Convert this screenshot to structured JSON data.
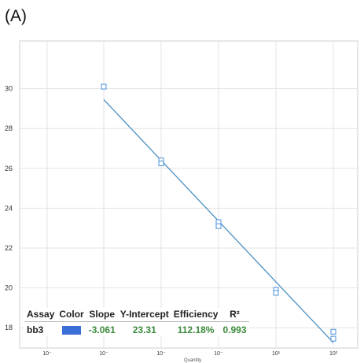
{
  "panel_label": "(A)",
  "chart_data": {
    "type": "scatter",
    "title": "",
    "ylabel": "",
    "xlabel": "Quantity",
    "x_scale": "log",
    "x_tick_labels": [
      "10⁻",
      "10⁻",
      "10⁻",
      "10⁻",
      "10¹",
      "10²"
    ],
    "x_tick_values": [
      0.0001,
      0.001,
      0.01,
      0.1,
      10,
      100
    ],
    "y_ticks": [
      18,
      20,
      22,
      24,
      26,
      28,
      30
    ],
    "ylim": [
      16.8,
      31.2
    ],
    "grid": true,
    "points": [
      {
        "x": 0.001,
        "y": 30.1
      },
      {
        "x": 0.01,
        "y": 26.4
      },
      {
        "x": 0.01,
        "y": 26.25
      },
      {
        "x": 0.1,
        "y": 23.3
      },
      {
        "x": 0.1,
        "y": 23.1
      },
      {
        "x": 1,
        "y": 19.9
      },
      {
        "x": 1,
        "y": 19.75
      },
      {
        "x": 10,
        "y": 17.8
      },
      {
        "x": 10,
        "y": 17.45
      }
    ],
    "fit_line": {
      "slope": -3.061,
      "intercept": 23.31
    },
    "point_color": "#4a90d9",
    "line_color": "#4a90c4"
  },
  "table": {
    "headers": [
      "Assay",
      "Color",
      "Slope",
      "Y-Intercept",
      "Efficiency",
      "R²"
    ],
    "row": {
      "assay": "bb3",
      "color": "#3a6fd8",
      "slope": "-3.061",
      "intercept": "23.31",
      "efficiency": "112.18%",
      "r2": "0.993"
    }
  }
}
